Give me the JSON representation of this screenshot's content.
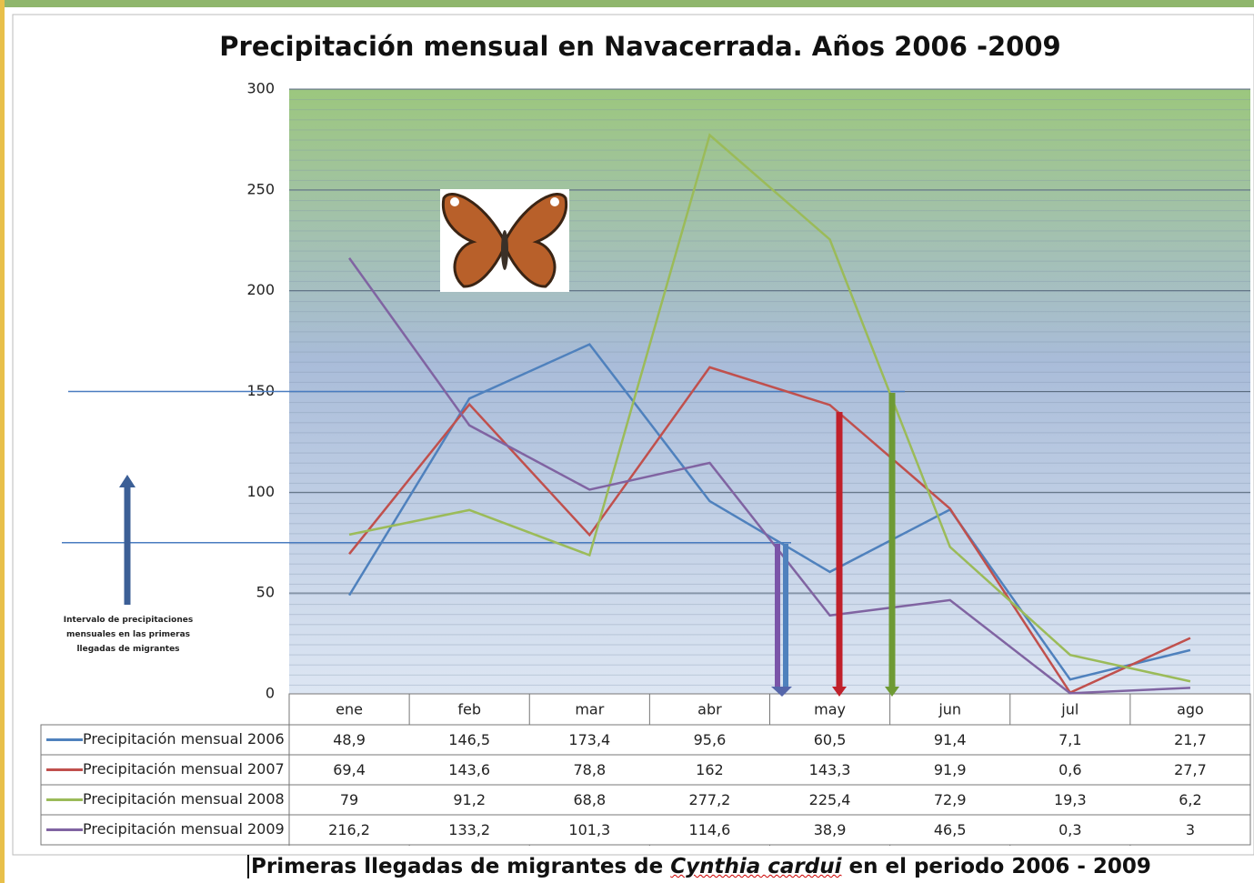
{
  "chart_data": {
    "type": "line",
    "title": "Precipitación mensual en Navacerrada. Años 2006 -2009",
    "categories": [
      "ene",
      "feb",
      "mar",
      "abr",
      "may",
      "jun",
      "jul",
      "ago"
    ],
    "series": [
      {
        "name": "Precipitación mensual 2006",
        "color": "#4f81bd",
        "values": [
          48.9,
          146.5,
          173.4,
          95.6,
          60.5,
          91.4,
          7.1,
          21.7
        ],
        "value_labels": [
          "48,9",
          "146,5",
          "173,4",
          "95,6",
          "60,5",
          "91,4",
          "7,1",
          "21,7"
        ]
      },
      {
        "name": "Precipitación mensual 2007",
        "color": "#c0504d",
        "values": [
          69.4,
          143.6,
          78.8,
          162,
          143.3,
          91.9,
          0.6,
          27.7
        ],
        "value_labels": [
          "69,4",
          "143,6",
          "78,8",
          "162",
          "143,3",
          "91,9",
          "0,6",
          "27,7"
        ]
      },
      {
        "name": "Precipitación mensual 2008",
        "color": "#9bbb59",
        "values": [
          79,
          91.2,
          68.8,
          277.2,
          225.4,
          72.9,
          19.3,
          6.2
        ],
        "value_labels": [
          "79",
          "91,2",
          "68,8",
          "277,2",
          "225,4",
          "72,9",
          "19,3",
          "6,2"
        ]
      },
      {
        "name": "Precipitación mensual 2009",
        "color": "#8064a2",
        "values": [
          216.2,
          133.2,
          101.3,
          114.6,
          38.9,
          46.5,
          0.3,
          3
        ],
        "value_labels": [
          "216,2",
          "133,2",
          "101,3",
          "114,6",
          "38,9",
          "46,5",
          "0,3",
          "3"
        ]
      }
    ],
    "ylim": [
      0,
      300
    ],
    "yticks": [
      0,
      50,
      100,
      150,
      200,
      250,
      300
    ],
    "grid": true,
    "reference_lines": [
      150,
      75
    ],
    "annotation": "Intervalo de precipitaciones mensuales en las primeras llegadas de migrantes",
    "caption": [
      "Primeras llegadas de migrantes de ",
      "Cynthia cardui",
      " en el periodo 2006 - 2009"
    ]
  }
}
